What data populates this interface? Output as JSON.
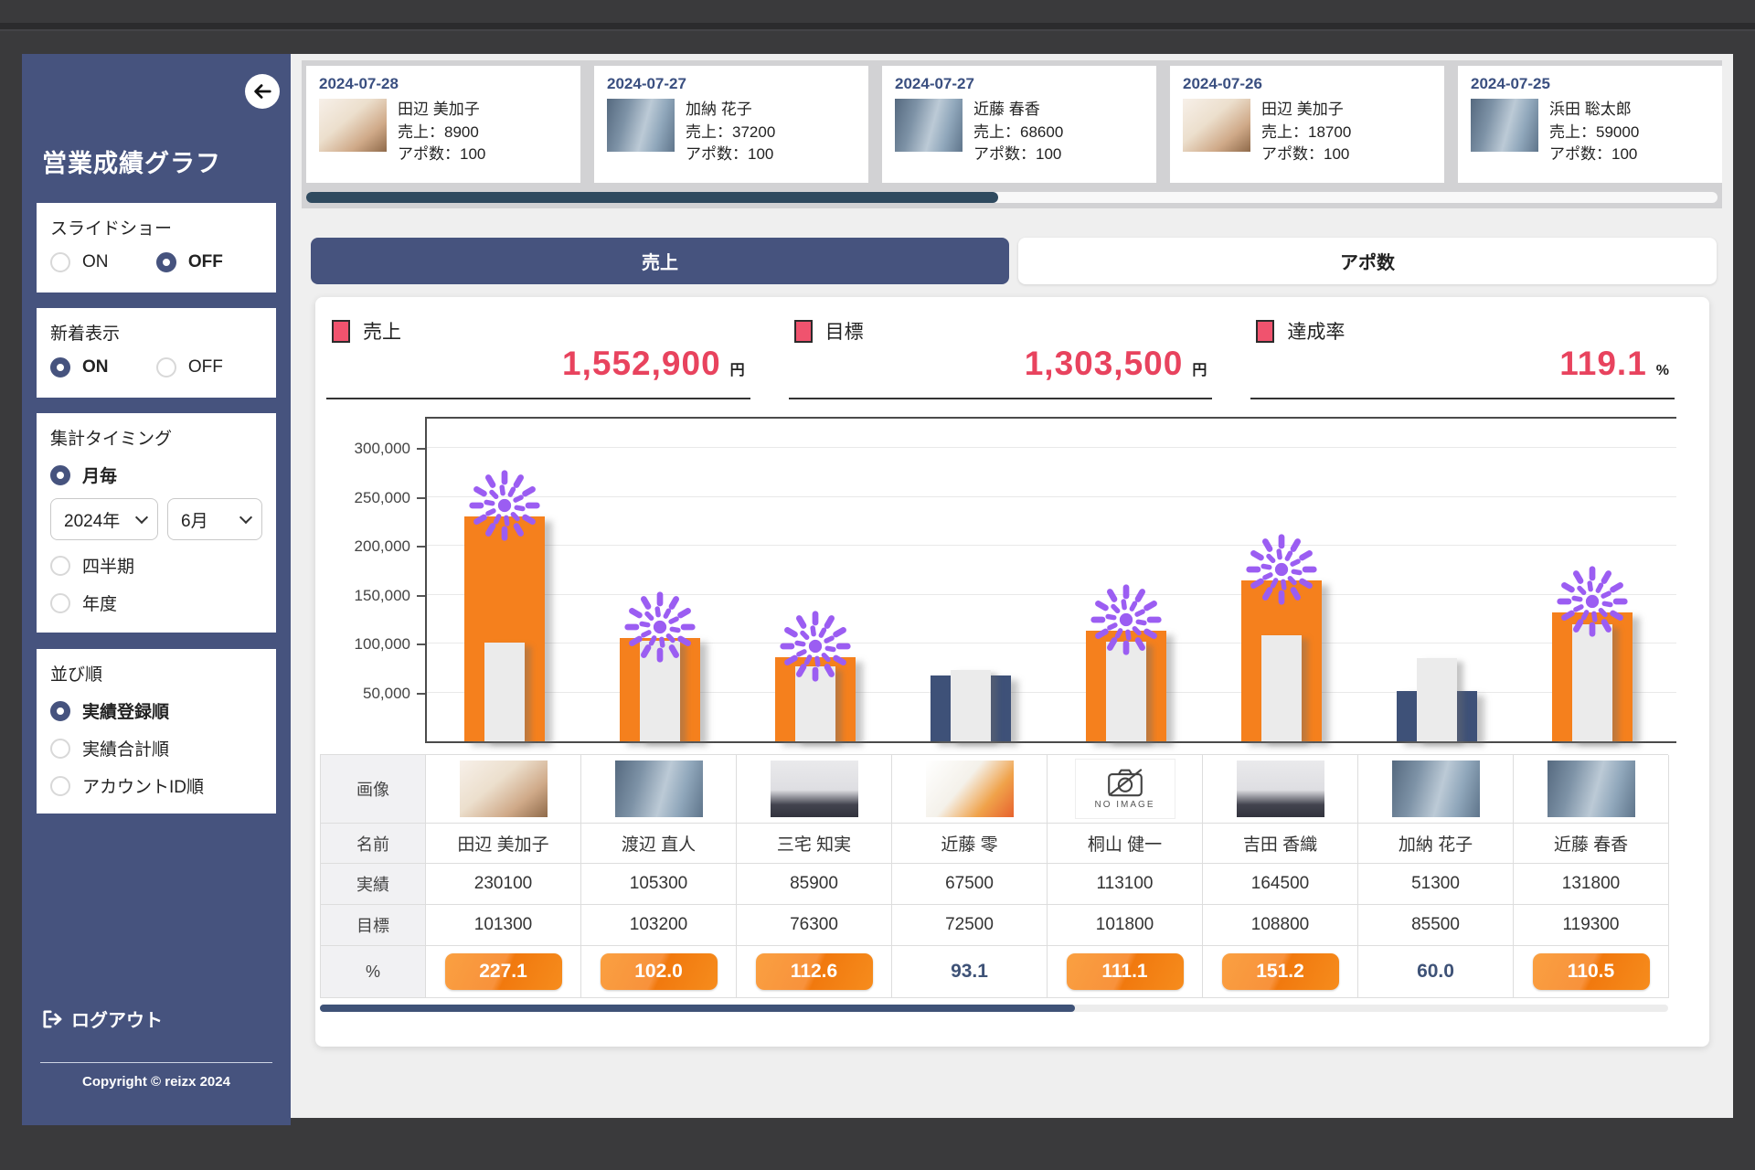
{
  "frame": {
    "back_icon": "arrow-left"
  },
  "sidebar": {
    "title": "営業成績グラフ",
    "groups": {
      "slideshow": {
        "label": "スライドショー",
        "options": [
          "ON",
          "OFF"
        ],
        "selected": "OFF"
      },
      "new_display": {
        "label": "新着表示",
        "options": [
          "ON",
          "OFF"
        ],
        "selected": "ON"
      },
      "timing": {
        "label": "集計タイミング",
        "options": [
          "月毎",
          "四半期",
          "年度"
        ],
        "selected": "月毎",
        "year_value": "2024年",
        "month_value": "6月"
      },
      "sort": {
        "label": "並び順",
        "options": [
          "実績登録順",
          "実績合計順",
          "アカウントID順"
        ],
        "selected": "実績登録順"
      }
    },
    "logout_label": "ログアウト",
    "copyright": "Copyright © reizx 2024"
  },
  "carousel": {
    "cards": [
      {
        "date": "2024-07-28",
        "name": "田辺 美加子",
        "sales": "売上：8900",
        "appointments": "アポ数：100",
        "photo": "woman-tablet"
      },
      {
        "date": "2024-07-27",
        "name": "加納 花子",
        "sales": "売上：37200",
        "appointments": "アポ数：100",
        "photo": "man-phone"
      },
      {
        "date": "2024-07-27",
        "name": "近藤 春香",
        "sales": "売上：68600",
        "appointments": "アポ数：100",
        "photo": "man-phone"
      },
      {
        "date": "2024-07-26",
        "name": "田辺 美加子",
        "sales": "売上：18700",
        "appointments": "アポ数：100",
        "photo": "woman-tablet"
      },
      {
        "date": "2024-07-25",
        "name": "浜田 聡太郎",
        "sales": "売上：59000",
        "appointments": "アポ数：100",
        "photo": "man-phone"
      }
    ]
  },
  "tabs": [
    {
      "label": "売上",
      "active": true
    },
    {
      "label": "アポ数",
      "active": false
    }
  ],
  "stats": [
    {
      "label": "売上",
      "value": "1,552,900",
      "unit": "円"
    },
    {
      "label": "目標",
      "value": "1,303,500",
      "unit": "円"
    },
    {
      "label": "達成率",
      "value": "119.1",
      "unit": "%"
    }
  ],
  "chart_data": {
    "type": "bar",
    "categories": [
      "田辺 美加子",
      "渡辺 直人",
      "三宅 知実",
      "近藤 零",
      "桐山 健一",
      "吉田 香織",
      "加納 花子",
      "近藤 春香"
    ],
    "series": [
      {
        "name": "実績",
        "values": [
          230100,
          105300,
          85900,
          67500,
          113100,
          164500,
          51300,
          131800
        ]
      },
      {
        "name": "目標",
        "values": [
          101300,
          103200,
          76300,
          72500,
          101800,
          108800,
          85500,
          119300
        ]
      }
    ],
    "achieved": [
      true,
      true,
      true,
      false,
      true,
      true,
      false,
      true
    ],
    "ylim": [
      0,
      330000
    ],
    "yticks": [
      50000,
      100000,
      150000,
      200000,
      250000,
      300000
    ],
    "grid": true,
    "legend": "none",
    "bar_colors": {
      "achieved": "#f5801d",
      "missed": "#3e5178",
      "target": "#ebebeb"
    }
  },
  "table": {
    "row_labels": [
      "画像",
      "名前",
      "実績",
      "目標",
      "%"
    ],
    "no_image_text": "NO IMAGE",
    "columns": [
      {
        "name": "田辺 美加子",
        "actual": "230100",
        "target": "101300",
        "percent": "227.1",
        "achieved": true,
        "photo": "woman-tablet"
      },
      {
        "name": "渡辺 直人",
        "actual": "105300",
        "target": "103200",
        "percent": "102.0",
        "achieved": true,
        "photo": "man-phone"
      },
      {
        "name": "三宅 知実",
        "actual": "85900",
        "target": "76300",
        "percent": "112.6",
        "achieved": true,
        "photo": "man-shout"
      },
      {
        "name": "近藤 零",
        "actual": "67500",
        "target": "72500",
        "percent": "93.1",
        "achieved": false,
        "photo": "woman-color"
      },
      {
        "name": "桐山 健一",
        "actual": "113100",
        "target": "101800",
        "percent": "111.1",
        "achieved": true,
        "photo": "no-image"
      },
      {
        "name": "吉田 香織",
        "actual": "164500",
        "target": "108800",
        "percent": "151.2",
        "achieved": true,
        "photo": "man-shout"
      },
      {
        "name": "加納 花子",
        "actual": "51300",
        "target": "85500",
        "percent": "60.0",
        "achieved": false,
        "photo": "man-phone"
      },
      {
        "name": "近藤 春香",
        "actual": "131800",
        "target": "119300",
        "percent": "110.5",
        "achieved": true,
        "photo": "man-phone"
      }
    ]
  },
  "colors": {
    "accent_pink": "#e8435e",
    "sidebar_navy": "#46537e",
    "orange": "#f5801d",
    "bar_navy": "#3e5178",
    "firework_purple": "#9b5df2",
    "frame_dark": "#3a3a3c"
  }
}
